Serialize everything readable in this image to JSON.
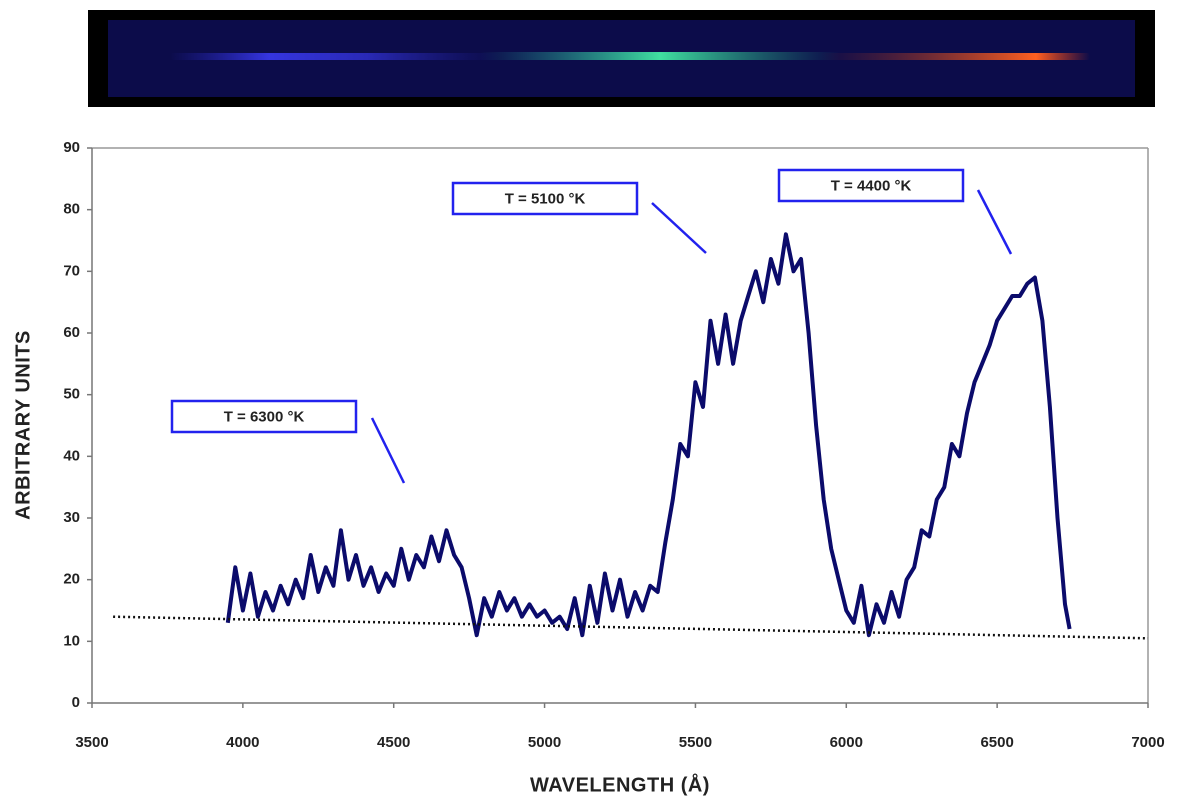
{
  "chart_data": {
    "type": "line",
    "xlabel": "WAVELENGTH (Å)",
    "ylabel": "ARBITRARY UNITS",
    "xlim": [
      3500,
      7000
    ],
    "xticks": [
      3500,
      4000,
      4500,
      5000,
      5500,
      6000,
      6500,
      7000
    ],
    "ylim": [
      0,
      90
    ],
    "yticks": [
      0,
      10,
      20,
      30,
      40,
      50,
      60,
      70,
      80,
      90
    ],
    "grid": false,
    "series": [
      {
        "color": "#0b0b6b",
        "linestyle": "solid",
        "x": [
          3950,
          3975,
          4000,
          4025,
          4050,
          4075,
          4100,
          4125,
          4150,
          4175,
          4200,
          4225,
          4250,
          4275,
          4300,
          4325,
          4350,
          4375,
          4400,
          4425,
          4450,
          4475,
          4500,
          4525,
          4550,
          4575,
          4600,
          4625,
          4650,
          4675,
          4700,
          4725,
          4750,
          4775,
          4800,
          4825,
          4850,
          4875,
          4900,
          4925,
          4950,
          4975,
          5000,
          5025,
          5050,
          5075,
          5100,
          5125,
          5150,
          5175,
          5200,
          5225,
          5250,
          5275,
          5300,
          5325,
          5350,
          5375,
          5400,
          5425,
          5450,
          5475,
          5500,
          5525,
          5550,
          5575,
          5600,
          5625,
          5650,
          5675,
          5700,
          5725,
          5750,
          5775,
          5800,
          5825,
          5850,
          5875,
          5900,
          5925,
          5950,
          5975,
          6000,
          6025,
          6050,
          6075,
          6100,
          6125,
          6150,
          6175,
          6200,
          6225,
          6250,
          6275,
          6300,
          6325,
          6350,
          6375,
          6400,
          6425,
          6450,
          6475,
          6500,
          6525,
          6550,
          6575,
          6600,
          6625,
          6650,
          6675,
          6700,
          6725,
          6740
        ],
        "values": [
          13,
          22,
          15,
          21,
          14,
          18,
          15,
          19,
          16,
          20,
          17,
          24,
          18,
          22,
          19,
          28,
          20,
          24,
          19,
          22,
          18,
          21,
          19,
          25,
          20,
          24,
          22,
          27,
          23,
          28,
          24,
          22,
          17,
          11,
          17,
          14,
          18,
          15,
          17,
          14,
          16,
          14,
          15,
          13,
          14,
          12,
          17,
          11,
          19,
          13,
          21,
          15,
          20,
          14,
          18,
          15,
          19,
          18,
          26,
          33,
          42,
          40,
          52,
          48,
          62,
          55,
          63,
          55,
          62,
          66,
          70,
          65,
          72,
          68,
          76,
          70,
          72,
          60,
          45,
          33,
          25,
          20,
          15,
          13,
          19,
          11,
          16,
          13,
          18,
          14,
          20,
          22,
          28,
          27,
          33,
          35,
          42,
          40,
          47,
          52,
          55,
          58,
          62,
          64,
          66,
          66,
          68,
          69,
          62,
          48,
          30,
          16,
          12
        ]
      },
      {
        "color": "#111111",
        "linestyle": "dotted",
        "x": [
          3570,
          7000
        ],
        "values": [
          14,
          10.5
        ]
      }
    ],
    "annotations": [
      {
        "text": "T = 6300 °K"
      },
      {
        "text": "T = 5100 °K"
      },
      {
        "text": "T = 4400 °K"
      }
    ]
  }
}
